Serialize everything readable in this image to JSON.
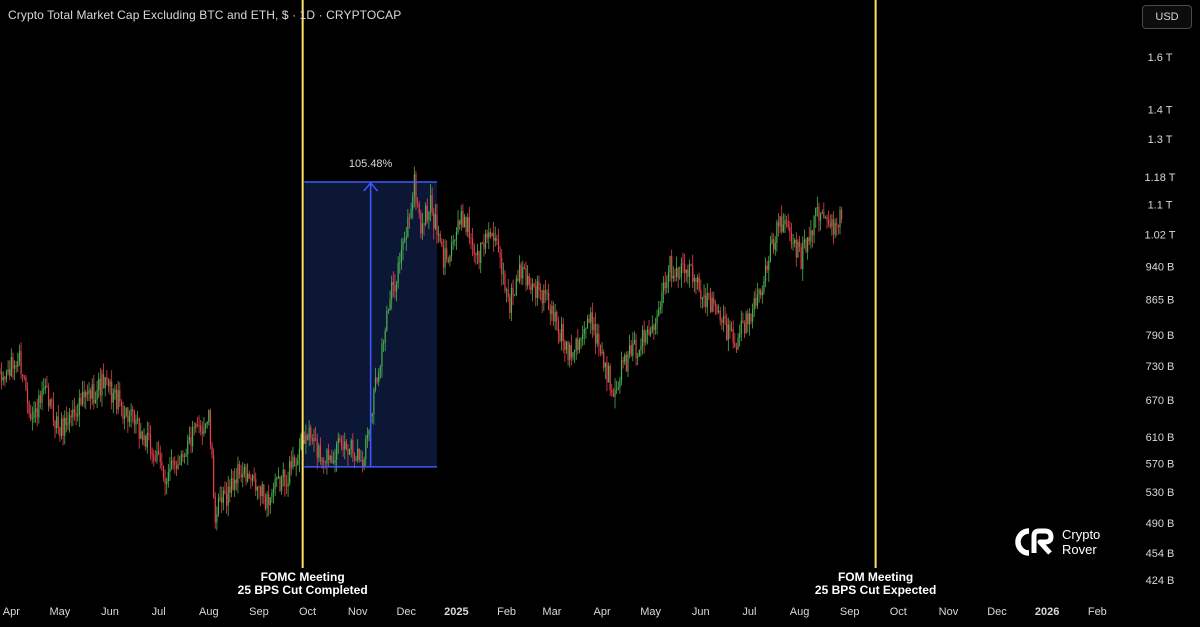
{
  "header": {
    "title": "Crypto Total Market Cap Excluding BTC and ETH, $ · 1D · CRYPTOCAP",
    "currency": "USD"
  },
  "brand": {
    "name": "Crypto\nRover",
    "logo": "crypto-rover-logo"
  },
  "colors": {
    "background": "#000000",
    "up": "#4caf50",
    "down": "#e8414d",
    "event_line": "#ffe066",
    "range_box_fill": "#0d1738",
    "range_box_stroke": "#3d5afe",
    "text": "#d9d9d9"
  },
  "chart_data": {
    "type": "candlestick",
    "title": "Crypto Total Market Cap Excluding BTC and ETH, $ · 1D · CRYPTOCAP",
    "xlabel": "",
    "ylabel": "",
    "y_scale": "log",
    "ylim": [
      405,
      1850
    ],
    "xlim": [
      "2024-03-25",
      "2026-02-15"
    ],
    "y_ticks": [
      "1.6 T",
      "1.4 T",
      "1.3 T",
      "1.18 T",
      "1.1 T",
      "1.02 T",
      "940 B",
      "865 B",
      "790 B",
      "730 B",
      "670 B",
      "610 B",
      "570 B",
      "530 B",
      "490 B",
      "454 B",
      "424 B"
    ],
    "y_tick_values": [
      1600,
      1400,
      1300,
      1180,
      1100,
      1020,
      940,
      865,
      790,
      730,
      670,
      610,
      570,
      530,
      490,
      454,
      424
    ],
    "x_ticks": [
      "Apr",
      "May",
      "Jun",
      "Jul",
      "Aug",
      "Sep",
      "Oct",
      "Nov",
      "Dec",
      "2025",
      "Feb",
      "Mar",
      "Apr",
      "May",
      "Jun",
      "Jul",
      "Aug",
      "Sep",
      "Oct",
      "Nov",
      "Dec",
      "2026",
      "Feb"
    ],
    "x_tick_dates": [
      "2024-04-01",
      "2024-05-01",
      "2024-06-01",
      "2024-07-01",
      "2024-08-01",
      "2024-09-01",
      "2024-10-01",
      "2024-11-01",
      "2024-12-01",
      "2025-01-01",
      "2025-02-01",
      "2025-03-01",
      "2025-04-01",
      "2025-05-01",
      "2025-06-01",
      "2025-07-01",
      "2025-08-01",
      "2025-09-01",
      "2025-10-01",
      "2025-11-01",
      "2025-12-01",
      "2026-01-01",
      "2026-02-01"
    ],
    "grid": false,
    "series": [
      {
        "keypoints": [
          [
            "2024-03-25",
            700
          ],
          [
            "2024-04-06",
            745
          ],
          [
            "2024-04-14",
            640
          ],
          [
            "2024-04-22",
            680
          ],
          [
            "2024-05-01",
            620
          ],
          [
            "2024-05-12",
            660
          ],
          [
            "2024-05-28",
            700
          ],
          [
            "2024-06-08",
            660
          ],
          [
            "2024-06-24",
            600
          ],
          [
            "2024-07-06",
            550
          ],
          [
            "2024-07-22",
            610
          ],
          [
            "2024-08-01",
            640
          ],
          [
            "2024-08-05",
            500
          ],
          [
            "2024-08-20",
            560
          ],
          [
            "2024-09-06",
            520
          ],
          [
            "2024-09-20",
            560
          ],
          [
            "2024-10-01",
            615
          ],
          [
            "2024-10-10",
            580
          ],
          [
            "2024-10-28",
            600
          ],
          [
            "2024-11-04",
            570
          ],
          [
            "2024-11-12",
            700
          ],
          [
            "2024-11-22",
            880
          ],
          [
            "2024-11-30",
            1000
          ],
          [
            "2024-12-06",
            1160
          ],
          [
            "2024-12-10",
            1040
          ],
          [
            "2024-12-16",
            1100
          ],
          [
            "2024-12-24",
            955
          ],
          [
            "2025-01-06",
            1070
          ],
          [
            "2025-01-14",
            960
          ],
          [
            "2025-01-22",
            1040
          ],
          [
            "2025-02-03",
            860
          ],
          [
            "2025-02-10",
            930
          ],
          [
            "2025-02-26",
            860
          ],
          [
            "2025-03-11",
            760
          ],
          [
            "2025-03-26",
            820
          ],
          [
            "2025-04-07",
            690
          ],
          [
            "2025-04-16",
            740
          ],
          [
            "2025-05-01",
            800
          ],
          [
            "2025-05-12",
            940
          ],
          [
            "2025-05-24",
            930
          ],
          [
            "2025-06-06",
            860
          ],
          [
            "2025-06-22",
            780
          ],
          [
            "2025-07-03",
            840
          ],
          [
            "2025-07-12",
            940
          ],
          [
            "2025-07-20",
            1060
          ],
          [
            "2025-08-02",
            960
          ],
          [
            "2025-08-12",
            1080
          ],
          [
            "2025-08-20",
            1040
          ],
          [
            "2025-08-27",
            1060
          ]
        ]
      }
    ],
    "annotations": [
      {
        "type": "vline",
        "date": "2024-09-28",
        "label_line1": "FOMC Meeting",
        "label_line2": "25 BPS Cut Completed"
      },
      {
        "type": "vline",
        "date": "2025-09-17",
        "label_line1": "FOM Meeting",
        "label_line2": "25 BPS Cut Expected"
      },
      {
        "type": "range",
        "date_start": "2024-09-29",
        "date_end": "2024-12-20",
        "price_low": 565,
        "price_high": 1165,
        "label": "105.48%"
      }
    ]
  }
}
